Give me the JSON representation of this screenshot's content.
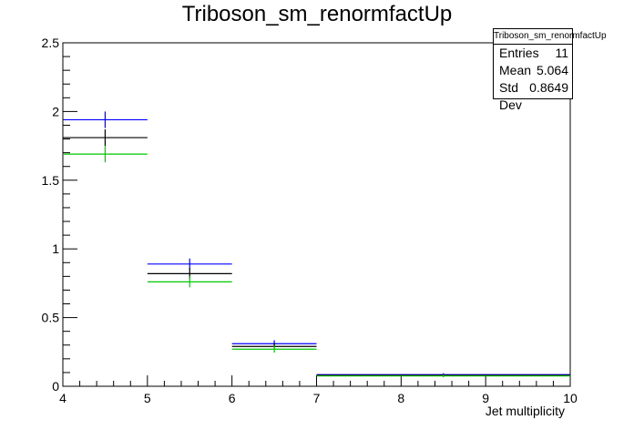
{
  "chart_data": {
    "type": "histogram",
    "title": "Triboson_sm_renormfactUp",
    "xlabel": "Jet multiplicity",
    "ylabel": "",
    "xlim": [
      4,
      10
    ],
    "ylim": [
      0,
      2.5
    ],
    "x_ticks": [
      "4",
      "5",
      "6",
      "7",
      "8",
      "9",
      "10"
    ],
    "y_ticks": [
      "0",
      "0.5",
      "1",
      "1.5",
      "2",
      "2.5"
    ],
    "series": [
      {
        "color": "#0000ff",
        "bins": [
          {
            "x0": 4,
            "x1": 5,
            "y": 1.94,
            "err": 0.06
          },
          {
            "x0": 5,
            "x1": 6,
            "y": 0.89,
            "err": 0.04
          },
          {
            "x0": 6,
            "x1": 7,
            "y": 0.31,
            "err": 0.025
          },
          {
            "x0": 7,
            "x1": 10,
            "y": 0.085,
            "err": 0.01
          }
        ]
      },
      {
        "color": "#000000",
        "bins": [
          {
            "x0": 4,
            "x1": 5,
            "y": 1.81,
            "err": 0.06
          },
          {
            "x0": 5,
            "x1": 6,
            "y": 0.82,
            "err": 0.04
          },
          {
            "x0": 6,
            "x1": 7,
            "y": 0.29,
            "err": 0.025
          },
          {
            "x0": 7,
            "x1": 10,
            "y": 0.08,
            "err": 0.01
          }
        ]
      },
      {
        "color": "#00c800",
        "bins": [
          {
            "x0": 4,
            "x1": 5,
            "y": 1.69,
            "err": 0.06
          },
          {
            "x0": 5,
            "x1": 6,
            "y": 0.76,
            "err": 0.04
          },
          {
            "x0": 6,
            "x1": 7,
            "y": 0.27,
            "err": 0.025
          },
          {
            "x0": 7,
            "x1": 10,
            "y": 0.075,
            "err": 0.01
          }
        ]
      }
    ],
    "stats": {
      "name": "Triboson_sm_renormfactUp",
      "entries_label": "Entries",
      "entries": "11",
      "mean_label": "Mean",
      "mean": "5.064",
      "std_label": "Std Dev",
      "std": "0.8649"
    }
  }
}
